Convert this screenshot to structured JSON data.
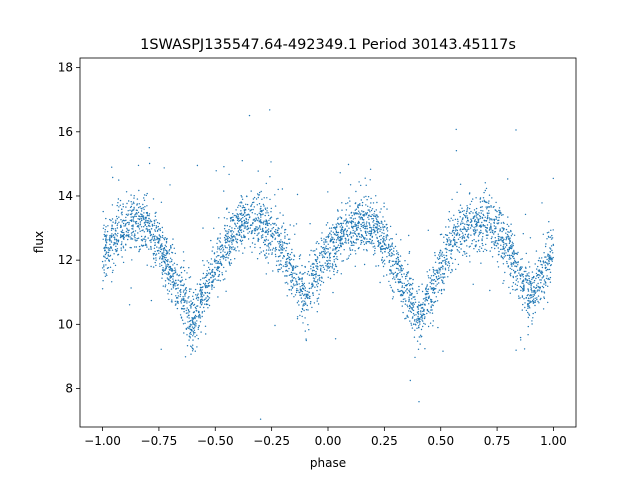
{
  "chart_data": {
    "type": "scatter",
    "title": "1SWASPJ135547.64-492349.1 Period 30143.45117s",
    "xlabel": "phase",
    "ylabel": "flux",
    "xlim": [
      -1.1,
      1.1
    ],
    "ylim": [
      6.8,
      18.3
    ],
    "xticks": [
      -1.0,
      -0.75,
      -0.5,
      -0.25,
      0.0,
      0.25,
      0.5,
      0.75,
      1.0
    ],
    "xtick_labels": [
      "−1.00",
      "−0.75",
      "−0.50",
      "−0.25",
      "0.00",
      "0.25",
      "0.50",
      "0.75",
      "1.00"
    ],
    "yticks": [
      8,
      10,
      12,
      14,
      16,
      18
    ],
    "ytick_labels": [
      "8",
      "10",
      "12",
      "14",
      "16",
      "18"
    ],
    "grid": false,
    "point_color": "#1f77b4",
    "phase_range": [
      -1.0,
      1.0
    ],
    "envelope": {
      "phase": [
        0.0,
        0.1,
        0.15,
        0.2,
        0.25,
        0.3,
        0.35,
        0.4,
        0.45,
        0.5,
        0.55,
        0.6,
        0.65,
        0.7,
        0.75,
        0.8,
        0.85,
        0.9,
        0.95,
        1.0
      ],
      "flux_mean": [
        12.3,
        13.05,
        13.2,
        13.05,
        12.5,
        11.7,
        10.9,
        10.1,
        10.9,
        11.8,
        12.5,
        13.05,
        13.25,
        13.2,
        12.9,
        12.3,
        11.5,
        10.9,
        11.6,
        12.3
      ],
      "flux_spread": 0.45
    }
  }
}
